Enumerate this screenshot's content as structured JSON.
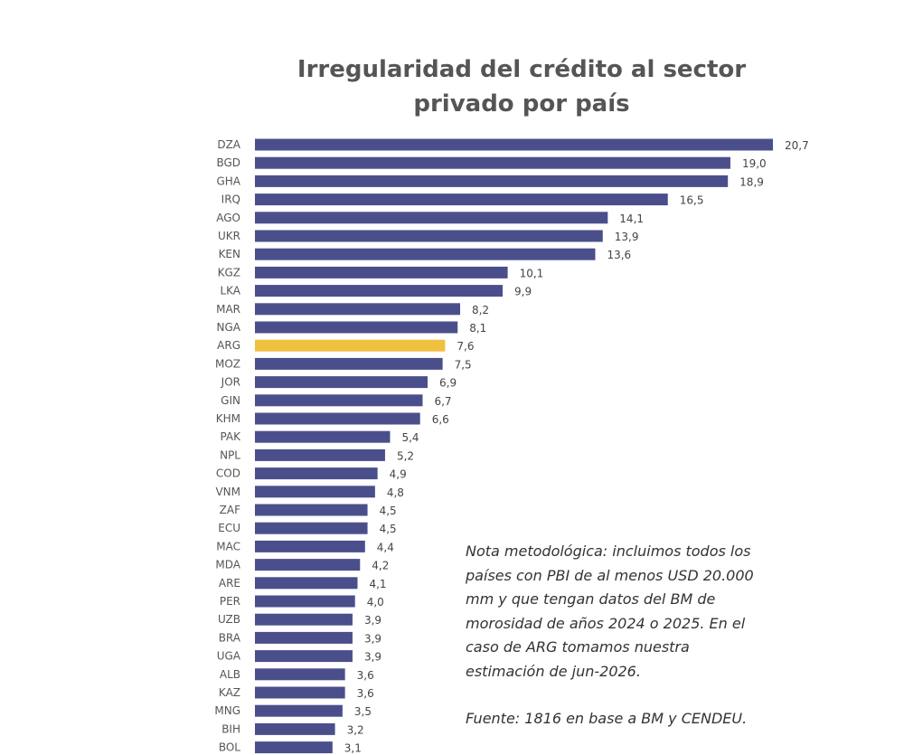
{
  "chart_data": {
    "type": "bar",
    "orientation": "horizontal",
    "title_lines": [
      "Irregularidad del crédito al sector",
      "privado por país"
    ],
    "categories": [
      "DZA",
      "BGD",
      "GHA",
      "IRQ",
      "AGO",
      "UKR",
      "KEN",
      "KGZ",
      "LKA",
      "MAR",
      "NGA",
      "ARG",
      "MOZ",
      "JOR",
      "GIN",
      "KHM",
      "PAK",
      "NPL",
      "COD",
      "VNM",
      "ZAF",
      "ECU",
      "MAC",
      "MDA",
      "ARE",
      "PER",
      "UZB",
      "BRA",
      "UGA",
      "ALB",
      "KAZ",
      "MNG",
      "BIH",
      "BOL"
    ],
    "values": [
      20.7,
      19.0,
      18.9,
      16.5,
      14.1,
      13.9,
      13.6,
      10.1,
      9.9,
      8.2,
      8.1,
      7.6,
      7.5,
      6.9,
      6.7,
      6.6,
      5.4,
      5.2,
      4.9,
      4.8,
      4.5,
      4.5,
      4.4,
      4.2,
      4.1,
      4.0,
      3.9,
      3.9,
      3.9,
      3.6,
      3.6,
      3.5,
      3.2,
      3.1
    ],
    "value_labels": [
      "20,7",
      "19,0",
      "18,9",
      "16,5",
      "14,1",
      "13,9",
      "13,6",
      "10,1",
      "9,9",
      "8,2",
      "8,1",
      "7,6",
      "7,5",
      "6,9",
      "6,7",
      "6,6",
      "5,4",
      "5,2",
      "4,9",
      "4,8",
      "4,5",
      "4,5",
      "4,4",
      "4,2",
      "4,1",
      "4,0",
      "3,9",
      "3,9",
      "3,9",
      "3,6",
      "3,6",
      "3,5",
      "3,2",
      "3,1"
    ],
    "highlight": "ARG",
    "colors": {
      "bar": "#4a4f8c",
      "highlight": "#f0c040"
    },
    "xlim": [
      0,
      20.7
    ],
    "grid": false,
    "legend": "none"
  },
  "note": {
    "lines": [
      "Nota metodológica: incluimos todos los",
      "países con PBI de al menos USD 20.000",
      "mm y que tengan datos del BM de",
      "morosidad de años 2024 o 2025. En el",
      "caso de ARG tomamos nuestra",
      "estimación de jun-2026."
    ],
    "source": "Fuente: 1816 en base a BM y CENDEU."
  }
}
